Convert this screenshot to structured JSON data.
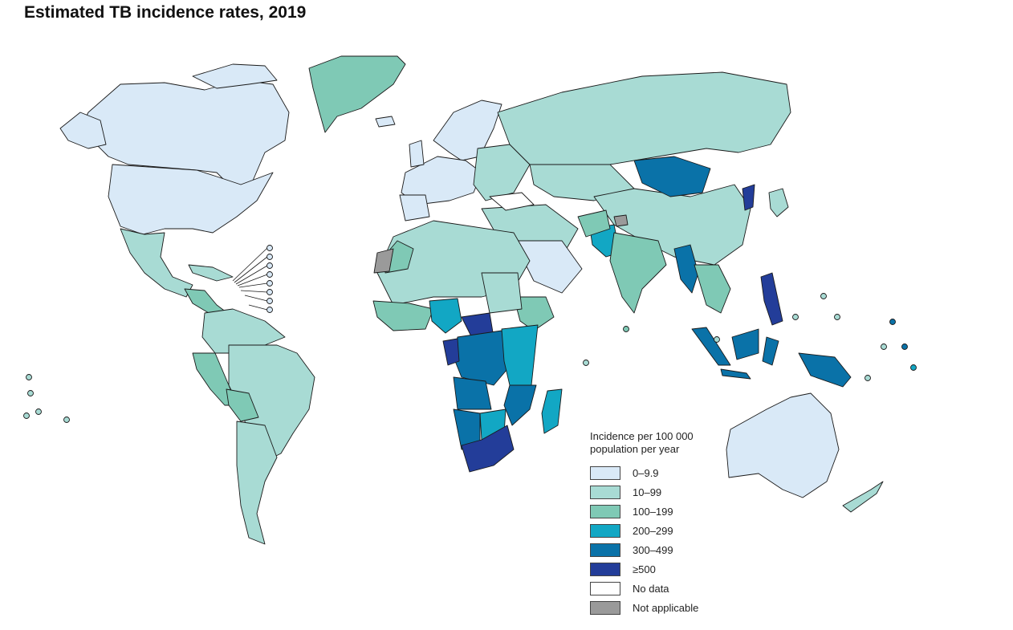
{
  "title": "Estimated TB incidence rates, 2019",
  "colors": {
    "c0": "#d9e9f7",
    "c1": "#a8dbd4",
    "c2": "#7fc9b5",
    "c3": "#12a7c4",
    "c4": "#0a72a8",
    "c5": "#233d99",
    "nodata": "#ffffff",
    "na": "#9a9a9a",
    "border": "#1a1a1a"
  },
  "legend": {
    "title": "Incidence per 100 000 population per year",
    "items": [
      {
        "label": "0–9.9",
        "color": "#d9e9f7"
      },
      {
        "label": "10–99",
        "color": "#a8dbd4"
      },
      {
        "label": "100–199",
        "color": "#7fc9b5"
      },
      {
        "label": "200–299",
        "color": "#12a7c4"
      },
      {
        "label": "300–499",
        "color": "#0a72a8"
      },
      {
        "label": "≥500",
        "color": "#233d99"
      },
      {
        "label": "No data",
        "color": "#ffffff"
      },
      {
        "label": "Not applicable",
        "color": "#9a9a9a"
      }
    ]
  }
}
